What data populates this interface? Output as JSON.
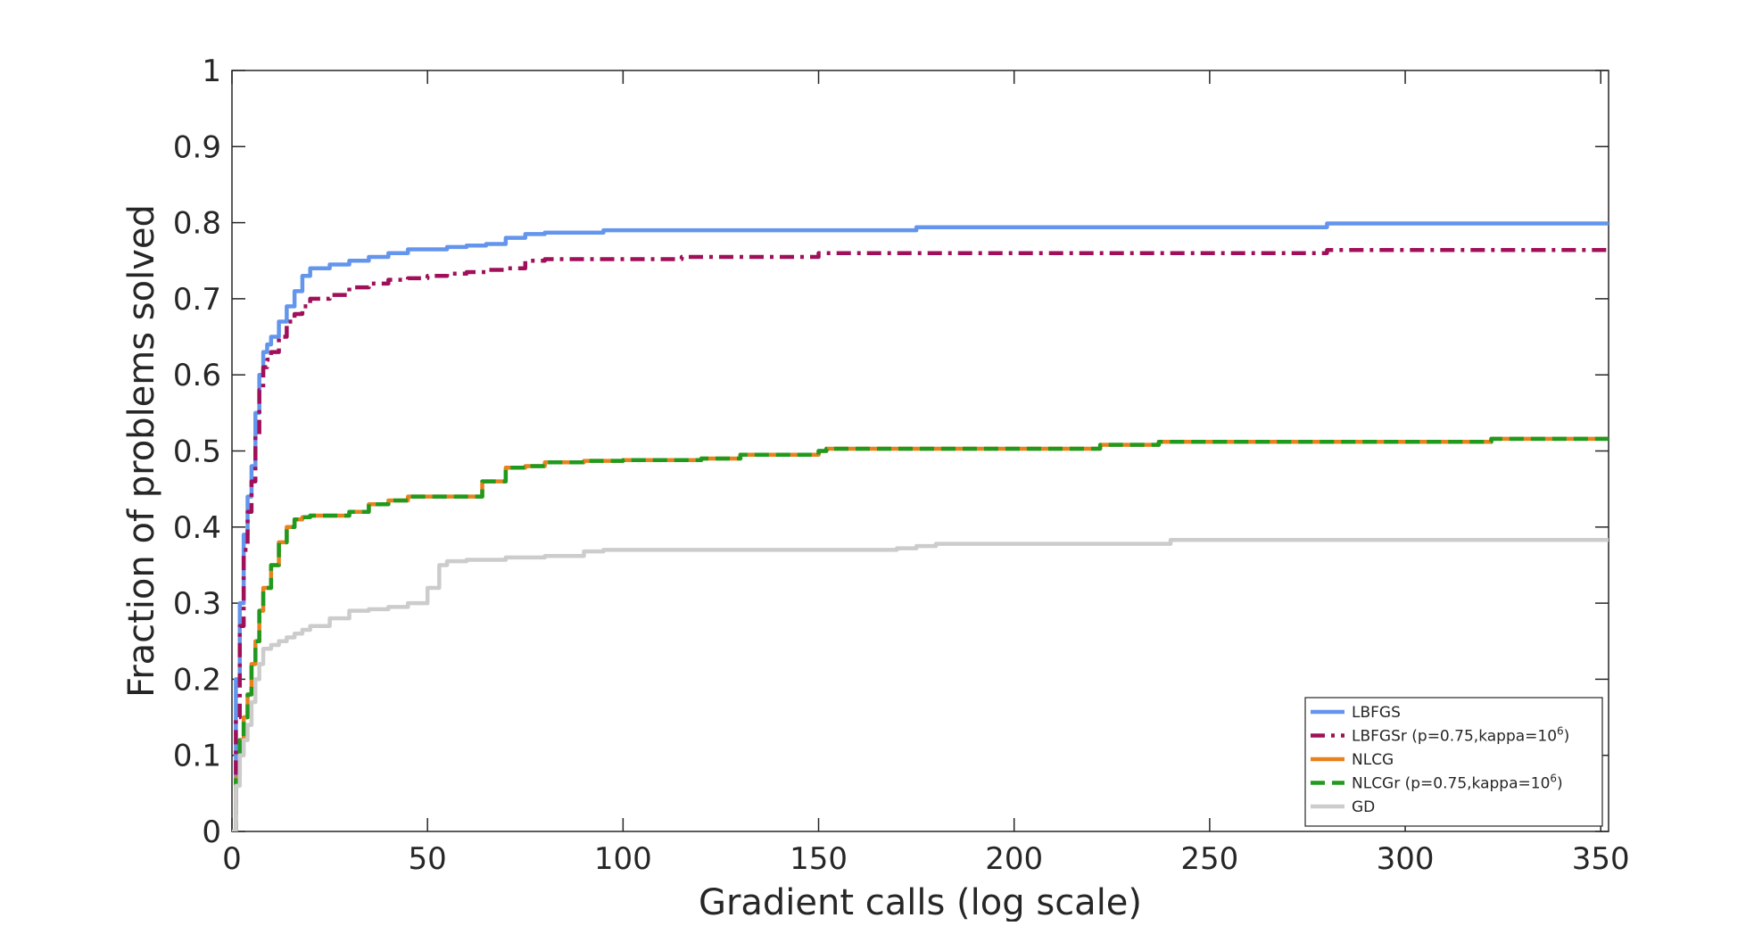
{
  "chart_data": {
    "type": "line",
    "title": "",
    "xlabel": "Gradient calls (log scale)",
    "ylabel": "Fraction of problems solved",
    "xlim": [
      0,
      352
    ],
    "ylim": [
      0,
      1
    ],
    "xticks": [
      0,
      50,
      100,
      150,
      200,
      250,
      300,
      350
    ],
    "xtick_labels": [
      "0",
      "50",
      "100",
      "150",
      "200",
      "250",
      "300",
      "350"
    ],
    "yticks": [
      0,
      0.1,
      0.2,
      0.3,
      0.4,
      0.5,
      0.6,
      0.7,
      0.8,
      0.9,
      1
    ],
    "ytick_labels": [
      "0",
      "0.1",
      "0.2",
      "0.3",
      "0.4",
      "0.5",
      "0.6",
      "0.7",
      "0.8",
      "0.9",
      "1"
    ],
    "grid": false,
    "box": true,
    "legend_position": "bottom-right",
    "series": [
      {
        "name": "LBFGS",
        "color": "#6495ED",
        "dash": "solid",
        "x": [
          0,
          1,
          2,
          3,
          4,
          5,
          6,
          7,
          8,
          9,
          10,
          12,
          14,
          16,
          18,
          20,
          25,
          30,
          35,
          40,
          45,
          50,
          55,
          60,
          65,
          70,
          75,
          80,
          90,
          95,
          100,
          150,
          172,
          175,
          200,
          279,
          280,
          300,
          352
        ],
        "y": [
          0.0,
          0.2,
          0.3,
          0.39,
          0.44,
          0.48,
          0.55,
          0.6,
          0.63,
          0.64,
          0.65,
          0.67,
          0.69,
          0.71,
          0.73,
          0.74,
          0.745,
          0.75,
          0.755,
          0.76,
          0.765,
          0.765,
          0.768,
          0.77,
          0.772,
          0.78,
          0.785,
          0.787,
          0.787,
          0.79,
          0.79,
          0.79,
          0.79,
          0.794,
          0.794,
          0.794,
          0.799,
          0.799,
          0.799
        ]
      },
      {
        "name": "LBFGSr (p=0.75,kappa=10^6)",
        "color": "#A0105A",
        "dash": "dashdot",
        "x": [
          0,
          1,
          2,
          3,
          4,
          5,
          6,
          7,
          8,
          9,
          10,
          12,
          14,
          16,
          18,
          20,
          25,
          30,
          35,
          40,
          45,
          50,
          55,
          60,
          65,
          70,
          75,
          80,
          100,
          115,
          150,
          200,
          279,
          280,
          300,
          352
        ],
        "y": [
          0.0,
          0.15,
          0.27,
          0.37,
          0.42,
          0.46,
          0.52,
          0.58,
          0.61,
          0.62,
          0.63,
          0.65,
          0.67,
          0.68,
          0.69,
          0.7,
          0.705,
          0.715,
          0.72,
          0.725,
          0.727,
          0.73,
          0.733,
          0.735,
          0.738,
          0.74,
          0.75,
          0.752,
          0.752,
          0.755,
          0.76,
          0.76,
          0.76,
          0.764,
          0.764,
          0.764
        ]
      },
      {
        "name": "NLCG",
        "color": "#E8821E",
        "dash": "solid",
        "x": [
          0,
          1,
          2,
          3,
          4,
          5,
          6,
          7,
          8,
          10,
          12,
          14,
          16,
          18,
          20,
          25,
          30,
          35,
          40,
          45,
          50,
          60,
          63,
          64,
          68,
          70,
          75,
          80,
          90,
          100,
          120,
          130,
          150,
          152,
          200,
          220,
          222,
          235,
          237,
          300,
          320,
          322,
          352
        ],
        "y": [
          0.0,
          0.07,
          0.12,
          0.15,
          0.18,
          0.22,
          0.25,
          0.29,
          0.32,
          0.35,
          0.38,
          0.4,
          0.41,
          0.413,
          0.415,
          0.415,
          0.42,
          0.43,
          0.435,
          0.44,
          0.44,
          0.44,
          0.44,
          0.46,
          0.46,
          0.478,
          0.48,
          0.485,
          0.487,
          0.488,
          0.49,
          0.495,
          0.5,
          0.503,
          0.503,
          0.503,
          0.508,
          0.508,
          0.512,
          0.512,
          0.512,
          0.516,
          0.516
        ]
      },
      {
        "name": "NLCGr (p=0.75,kappa=10^6)",
        "color": "#1F9A1F",
        "dash": "dashed",
        "x": [
          0,
          1,
          2,
          3,
          4,
          5,
          6,
          7,
          8,
          10,
          12,
          14,
          16,
          18,
          20,
          25,
          30,
          35,
          40,
          45,
          50,
          60,
          63,
          64,
          68,
          70,
          75,
          80,
          90,
          100,
          120,
          130,
          150,
          152,
          200,
          220,
          222,
          235,
          237,
          300,
          320,
          322,
          352
        ],
        "y": [
          0.0,
          0.07,
          0.12,
          0.15,
          0.18,
          0.22,
          0.25,
          0.29,
          0.32,
          0.35,
          0.38,
          0.4,
          0.41,
          0.413,
          0.415,
          0.415,
          0.42,
          0.43,
          0.435,
          0.44,
          0.44,
          0.44,
          0.44,
          0.46,
          0.46,
          0.478,
          0.48,
          0.485,
          0.487,
          0.488,
          0.49,
          0.495,
          0.5,
          0.503,
          0.503,
          0.503,
          0.508,
          0.508,
          0.512,
          0.512,
          0.512,
          0.516,
          0.516
        ]
      },
      {
        "name": "GD",
        "color": "#CCCCCC",
        "dash": "solid",
        "x": [
          0,
          1,
          2,
          3,
          4,
          5,
          6,
          7,
          8,
          10,
          12,
          14,
          16,
          18,
          20,
          25,
          30,
          35,
          40,
          45,
          50,
          53,
          55,
          60,
          70,
          80,
          90,
          95,
          100,
          150,
          170,
          175,
          180,
          200,
          240,
          300,
          352
        ],
        "y": [
          0.0,
          0.06,
          0.1,
          0.12,
          0.14,
          0.17,
          0.2,
          0.22,
          0.24,
          0.245,
          0.25,
          0.255,
          0.26,
          0.265,
          0.27,
          0.28,
          0.29,
          0.292,
          0.295,
          0.3,
          0.32,
          0.35,
          0.355,
          0.357,
          0.36,
          0.362,
          0.368,
          0.37,
          0.37,
          0.37,
          0.372,
          0.375,
          0.378,
          0.378,
          0.383,
          0.383,
          0.383
        ]
      }
    ],
    "legend": [
      {
        "base": "LBFGS",
        "sup": "",
        "tail": ""
      },
      {
        "base": "LBFGSr (p=0.75,kappa=10",
        "sup": "6",
        "tail": ")"
      },
      {
        "base": "NLCG",
        "sup": "",
        "tail": ""
      },
      {
        "base": "NLCGr (p=0.75,kappa=10",
        "sup": "6",
        "tail": ")"
      },
      {
        "base": "GD",
        "sup": "",
        "tail": ""
      }
    ]
  }
}
